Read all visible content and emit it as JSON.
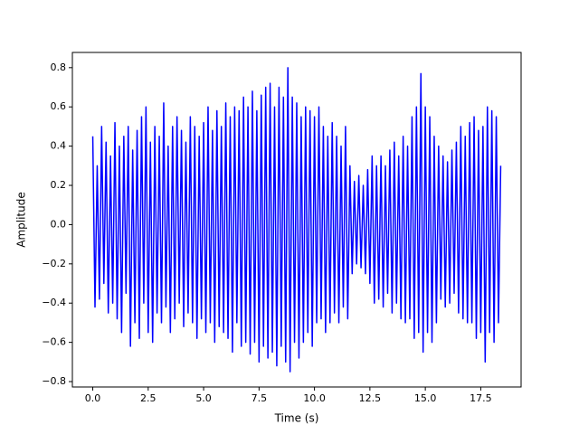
{
  "chart_data": {
    "type": "line",
    "x_label": "Time (s)",
    "y_label": "Amplitude",
    "color": "#0000ff",
    "xlim": [
      -0.92,
      19.32
    ],
    "ylim": [
      -0.8275,
      0.8775
    ],
    "xticks": [
      {
        "value": 0,
        "label": "0.0"
      },
      {
        "value": 2.5,
        "label": "2.5"
      },
      {
        "value": 5,
        "label": "5.0"
      },
      {
        "value": 7.5,
        "label": "7.5"
      },
      {
        "value": 10,
        "label": "10.0"
      },
      {
        "value": 12.5,
        "label": "12.5"
      },
      {
        "value": 15,
        "label": "15.0"
      },
      {
        "value": 17.5,
        "label": "17.5"
      }
    ],
    "yticks": [
      {
        "value": -0.8,
        "label": "−0.8"
      },
      {
        "value": -0.6,
        "label": "−0.6"
      },
      {
        "value": -0.4,
        "label": "−0.4"
      },
      {
        "value": -0.2,
        "label": "−0.2"
      },
      {
        "value": 0,
        "label": "0.0"
      },
      {
        "value": 0.2,
        "label": "0.2"
      },
      {
        "value": 0.4,
        "label": "0.4"
      },
      {
        "value": 0.6,
        "label": "0.6"
      },
      {
        "value": 0.8,
        "label": "0.8"
      }
    ],
    "x": [
      0,
      0.1,
      0.2,
      0.3,
      0.4,
      0.5,
      0.6,
      0.7,
      0.8,
      0.9,
      1,
      1.1,
      1.2,
      1.3,
      1.4,
      1.5,
      1.6,
      1.7,
      1.8,
      1.9,
      2,
      2.1,
      2.2,
      2.3,
      2.4,
      2.5,
      2.6,
      2.7,
      2.8,
      2.9,
      3,
      3.1,
      3.2,
      3.3,
      3.4,
      3.5,
      3.6,
      3.7,
      3.8,
      3.9,
      4,
      4.1,
      4.2,
      4.3,
      4.4,
      4.5,
      4.6,
      4.7,
      4.8,
      4.9,
      5,
      5.1,
      5.2,
      5.3,
      5.4,
      5.5,
      5.6,
      5.7,
      5.8,
      5.9,
      6,
      6.1,
      6.2,
      6.3,
      6.4,
      6.5,
      6.6,
      6.7,
      6.8,
      6.9,
      7,
      7.1,
      7.2,
      7.3,
      7.4,
      7.5,
      7.6,
      7.7,
      7.8,
      7.9,
      8,
      8.1,
      8.2,
      8.3,
      8.4,
      8.5,
      8.6,
      8.7,
      8.8,
      8.9,
      9,
      9.1,
      9.2,
      9.3,
      9.4,
      9.5,
      9.6,
      9.7,
      9.8,
      9.9,
      10,
      10.1,
      10.2,
      10.3,
      10.4,
      10.5,
      10.6,
      10.7,
      10.8,
      10.9,
      11,
      11.1,
      11.2,
      11.3,
      11.4,
      11.5,
      11.6,
      11.7,
      11.8,
      11.9,
      12,
      12.1,
      12.2,
      12.3,
      12.4,
      12.5,
      12.6,
      12.7,
      12.8,
      12.9,
      13,
      13.1,
      13.2,
      13.3,
      13.4,
      13.5,
      13.6,
      13.7,
      13.8,
      13.9,
      14,
      14.1,
      14.2,
      14.3,
      14.4,
      14.5,
      14.6,
      14.7,
      14.8,
      14.9,
      15,
      15.1,
      15.2,
      15.3,
      15.4,
      15.5,
      15.6,
      15.7,
      15.8,
      15.9,
      16,
      16.1,
      16.2,
      16.3,
      16.4,
      16.5,
      16.6,
      16.7,
      16.8,
      16.9,
      17,
      17.1,
      17.2,
      17.3,
      17.4,
      17.5,
      17.6,
      17.7,
      17.8,
      17.9,
      18,
      18.1,
      18.2,
      18.3,
      18.4
    ],
    "values": [
      0.45,
      -0.42,
      0.3,
      -0.38,
      0.5,
      -0.3,
      0.42,
      -0.45,
      0.35,
      -0.4,
      0.52,
      -0.48,
      0.4,
      -0.55,
      0.45,
      -0.35,
      0.5,
      -0.62,
      0.38,
      -0.5,
      0.48,
      -0.58,
      0.55,
      -0.4,
      0.6,
      -0.55,
      0.42,
      -0.6,
      0.5,
      -0.45,
      0.45,
      -0.5,
      0.62,
      -0.42,
      0.4,
      -0.55,
      0.5,
      -0.48,
      0.55,
      -0.4,
      0.48,
      -0.52,
      0.42,
      -0.45,
      0.55,
      -0.5,
      0.5,
      -0.58,
      0.45,
      -0.48,
      0.52,
      -0.55,
      0.6,
      -0.5,
      0.48,
      -0.6,
      0.58,
      -0.52,
      0.5,
      -0.55,
      0.62,
      -0.58,
      0.55,
      -0.65,
      0.6,
      -0.5,
      0.58,
      -0.62,
      0.65,
      -0.6,
      0.6,
      -0.66,
      0.68,
      -0.6,
      0.58,
      -0.7,
      0.66,
      -0.62,
      0.7,
      -0.68,
      0.72,
      -0.65,
      0.6,
      -0.72,
      0.7,
      -0.62,
      0.65,
      -0.7,
      0.8,
      -0.75,
      0.65,
      -0.6,
      0.62,
      -0.68,
      0.55,
      -0.6,
      0.6,
      -0.55,
      0.58,
      -0.62,
      0.55,
      -0.5,
      0.6,
      -0.48,
      0.5,
      -0.55,
      0.45,
      -0.5,
      0.52,
      -0.45,
      0.45,
      -0.5,
      0.4,
      -0.42,
      0.5,
      -0.48,
      0.3,
      -0.25,
      0.22,
      -0.2,
      0.25,
      -0.22,
      0.2,
      -0.25,
      0.28,
      -0.3,
      0.35,
      -0.4,
      0.3,
      -0.38,
      0.35,
      -0.42,
      0.3,
      -0.35,
      0.38,
      -0.45,
      0.42,
      -0.4,
      0.35,
      -0.48,
      0.45,
      -0.5,
      0.4,
      -0.48,
      0.55,
      -0.58,
      0.6,
      -0.55,
      0.77,
      -0.65,
      0.6,
      -0.55,
      0.55,
      -0.6,
      0.45,
      -0.5,
      0.4,
      -0.38,
      0.35,
      -0.42,
      0.32,
      -0.4,
      0.38,
      -0.35,
      0.42,
      -0.45,
      0.5,
      -0.48,
      0.45,
      -0.5,
      0.52,
      -0.5,
      0.55,
      -0.58,
      0.48,
      -0.55,
      0.5,
      -0.7,
      0.6,
      -0.55,
      0.58,
      -0.6,
      0.55,
      -0.5,
      0.3
    ]
  }
}
